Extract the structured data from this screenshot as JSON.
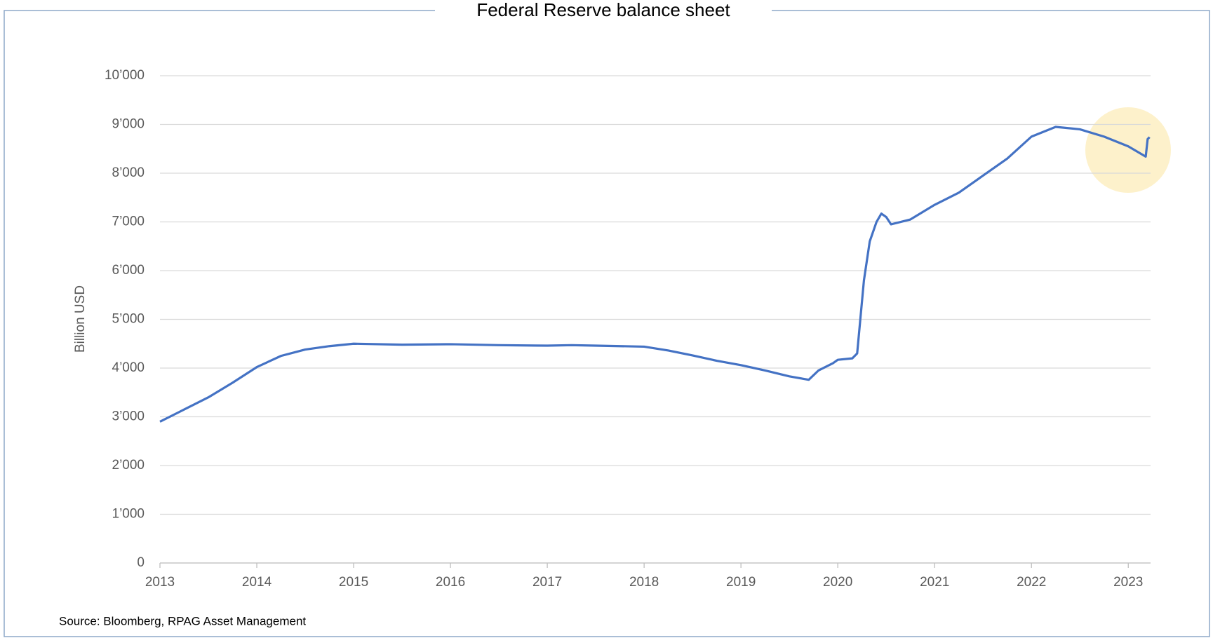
{
  "chart_data": {
    "type": "line",
    "title": "Federal Reserve balance sheet",
    "y_label": "Billion USD",
    "source": "Source: Bloomberg, RPAG Asset Management",
    "x": [
      2013.0,
      2013.25,
      2013.5,
      2013.75,
      2014.0,
      2014.25,
      2014.5,
      2014.75,
      2015.0,
      2015.5,
      2016.0,
      2016.5,
      2017.0,
      2017.25,
      2017.5,
      2018.0,
      2018.25,
      2018.5,
      2018.75,
      2019.0,
      2019.25,
      2019.5,
      2019.7,
      2019.8,
      2019.95,
      2020.0,
      2020.15,
      2020.2,
      2020.27,
      2020.33,
      2020.4,
      2020.45,
      2020.5,
      2020.55,
      2020.75,
      2021.0,
      2021.25,
      2021.5,
      2021.75,
      2022.0,
      2022.25,
      2022.5,
      2022.75,
      2023.0,
      2023.18,
      2023.2,
      2023.22
    ],
    "series": [
      {
        "name": "Federal Reserve balance sheet",
        "color": "#4472c4",
        "values": [
          2900,
          3150,
          3400,
          3700,
          4020,
          4250,
          4380,
          4450,
          4500,
          4480,
          4490,
          4470,
          4460,
          4470,
          4460,
          4440,
          4360,
          4260,
          4150,
          4060,
          3950,
          3830,
          3760,
          3950,
          4100,
          4170,
          4200,
          4300,
          5800,
          6600,
          7000,
          7170,
          7100,
          6950,
          7050,
          7350,
          7600,
          7950,
          8300,
          8750,
          8950,
          8900,
          8750,
          8550,
          8340,
          8700,
          8740
        ]
      }
    ],
    "xlim": [
      2013,
      2023.23
    ],
    "xticks": [
      2013,
      2014,
      2015,
      2016,
      2017,
      2018,
      2019,
      2020,
      2021,
      2022,
      2023
    ],
    "ylim": [
      0,
      10000
    ],
    "yticks": [
      0,
      {
        "value": 1000,
        "label": "1’000"
      },
      {
        "value": 2000,
        "label": "2’000"
      },
      {
        "value": 3000,
        "label": "3’000"
      },
      {
        "value": 4000,
        "label": "4’000"
      },
      {
        "value": 5000,
        "label": "5’000"
      },
      {
        "value": 6000,
        "label": "6’000"
      },
      {
        "value": 7000,
        "label": "7’000"
      },
      {
        "value": 8000,
        "label": "8’000"
      },
      {
        "value": 9000,
        "label": "9’000"
      },
      {
        "value": 10000,
        "label": "10’000"
      }
    ],
    "grid": true
  }
}
